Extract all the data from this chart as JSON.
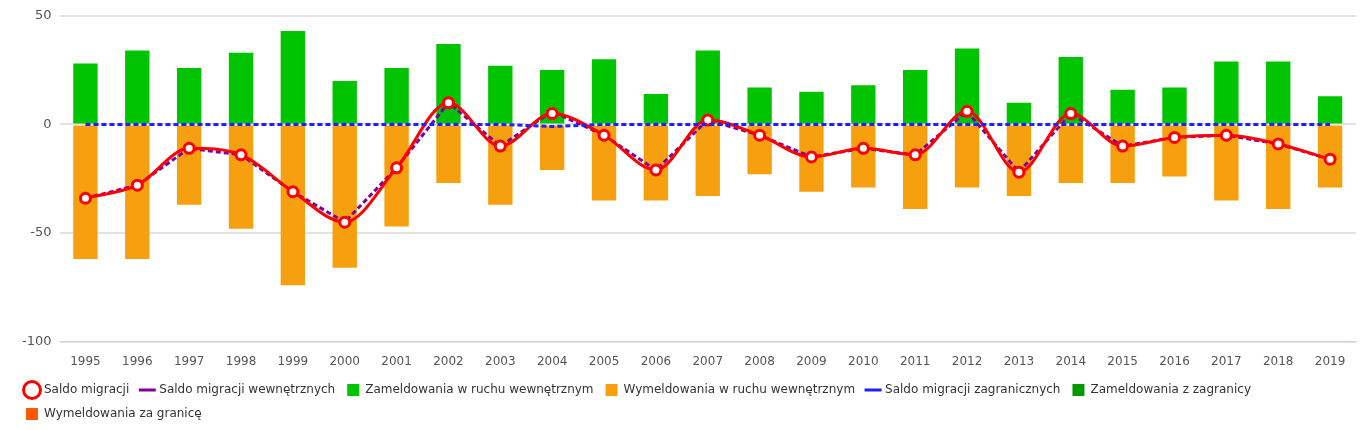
{
  "chart_data": {
    "type": "bar",
    "stacked": true,
    "categories": [
      "1995",
      "1996",
      "1997",
      "1998",
      "1999",
      "2000",
      "2001",
      "2002",
      "2003",
      "2004",
      "2005",
      "2006",
      "2007",
      "2008",
      "2009",
      "2010",
      "2011",
      "2012",
      "2013",
      "2014",
      "2015",
      "2016",
      "2017",
      "2018",
      "2019"
    ],
    "ylim": [
      -100,
      50
    ],
    "yticks": [
      -100,
      -50,
      0,
      50
    ],
    "grid": "y",
    "legend": "bottom",
    "series": [
      {
        "name": "Saldo migracji",
        "type": "line",
        "color": "#ff0000",
        "marker": "circle",
        "values": [
          -34,
          -28,
          -11,
          -14,
          -31,
          -45,
          -20,
          10,
          -10,
          5,
          -5,
          -21,
          2,
          -5,
          -15,
          -11,
          -14,
          6,
          -22,
          5,
          -10,
          -6,
          -5,
          -9,
          -16
        ]
      },
      {
        "name": "Saldo migracji wewnętrznych",
        "type": "line",
        "color": "#8000a0",
        "marker": "none",
        "line_style": "dashed",
        "values": [
          -34,
          -28,
          -11,
          -14,
          -31,
          -45,
          -20,
          10,
          -10,
          6,
          -5,
          -21,
          2,
          -5,
          -15,
          -11,
          -14,
          6,
          -22,
          5,
          -10,
          -6,
          -5,
          -9,
          -16
        ]
      },
      {
        "name": "Zameldowania w ruchu wewnętrznym",
        "color": "#00c400",
        "values": [
          28,
          34,
          26,
          33,
          43,
          20,
          26,
          37,
          27,
          25,
          30,
          14,
          34,
          17,
          15,
          18,
          25,
          35,
          10,
          31,
          16,
          17,
          29,
          29,
          13
        ]
      },
      {
        "name": "Wymeldowania w ruchu wewnętrznym",
        "color": "#f7a00f",
        "values": [
          -62,
          -62,
          -37,
          -48,
          -74,
          -66,
          -47,
          -27,
          -37,
          -21,
          -35,
          -35,
          -33,
          -23,
          -31,
          -29,
          -39,
          -29,
          -33,
          -27,
          -27,
          -24,
          -35,
          -39,
          -29
        ]
      },
      {
        "name": "Saldo migracji zagranicznych",
        "type": "line",
        "color": "#1f1fff",
        "marker": "none",
        "line_style": "dashed",
        "values": [
          0,
          0,
          0,
          0,
          0,
          0,
          0,
          0,
          0,
          -1,
          0,
          0,
          0,
          0,
          0,
          0,
          0,
          0,
          0,
          0,
          0,
          0,
          0,
          0,
          0
        ]
      },
      {
        "name": "Zameldowania z zagranicy",
        "color": "#009a00",
        "values": [
          null,
          null,
          null,
          null,
          null,
          null,
          null,
          null,
          null,
          null,
          null,
          null,
          null,
          null,
          null,
          null,
          null,
          null,
          null,
          null,
          null,
          null,
          null,
          null,
          null
        ]
      },
      {
        "name": "Wymeldowania za granicę",
        "color": "#ff5a00",
        "values": [
          null,
          null,
          null,
          null,
          null,
          null,
          null,
          null,
          null,
          null,
          null,
          null,
          null,
          null,
          null,
          null,
          null,
          null,
          null,
          null,
          null,
          null,
          null,
          null,
          null
        ]
      }
    ]
  }
}
